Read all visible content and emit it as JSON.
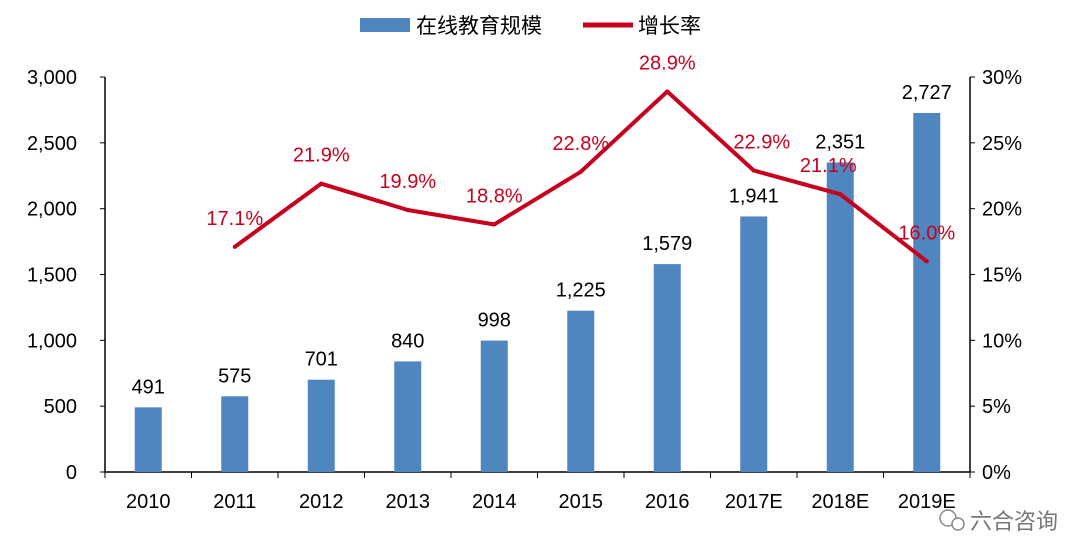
{
  "chart_data": {
    "type": "bar+line",
    "categories": [
      "2010",
      "2011",
      "2012",
      "2013",
      "2014",
      "2015",
      "2016",
      "2017E",
      "2018E",
      "2019E"
    ],
    "series": [
      {
        "name": "在线教育规模",
        "type": "bar",
        "axis": "left",
        "color": "#4f86c0",
        "values": [
          491,
          575,
          701,
          840,
          998,
          1225,
          1579,
          1941,
          2351,
          2727
        ],
        "labels": [
          "491",
          "575",
          "701",
          "840",
          "998",
          "1,225",
          "1,579",
          "1,941",
          "2,351",
          "2,727"
        ]
      },
      {
        "name": "增长率",
        "type": "line",
        "axis": "right",
        "color": "#c8001e",
        "values": [
          null,
          17.1,
          21.9,
          19.9,
          18.8,
          22.8,
          28.9,
          22.9,
          21.1,
          16.0
        ],
        "labels": [
          "",
          "17.1%",
          "21.9%",
          "19.9%",
          "18.8%",
          "22.8%",
          "28.9%",
          "22.9%",
          "21.1%",
          "16.0%"
        ]
      }
    ],
    "y_left": {
      "range": [
        0,
        3000
      ],
      "ticks": [
        "0",
        "500",
        "1,000",
        "1,500",
        "2,000",
        "2,500",
        "3,000"
      ]
    },
    "y_right": {
      "range": [
        0,
        30
      ],
      "ticks": [
        "0%",
        "5%",
        "10%",
        "15%",
        "20%",
        "25%",
        "30%"
      ]
    },
    "legend_position": "top",
    "grid": false
  },
  "watermark": "六合咨询"
}
